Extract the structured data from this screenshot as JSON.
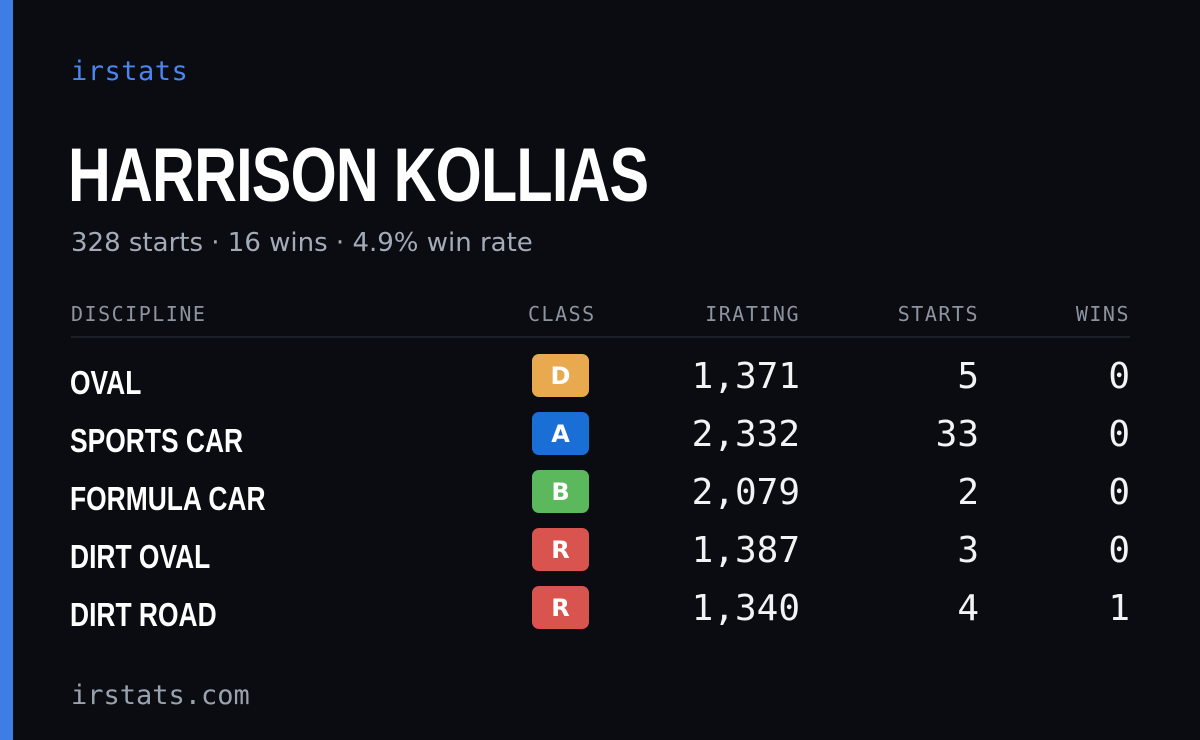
{
  "brand": "irstats",
  "driver": {
    "name": "HARRISON KOLLIAS",
    "summary": "328 starts · 16 wins · 4.9% win rate"
  },
  "columns": {
    "discipline": "DISCIPLINE",
    "class": "CLASS",
    "irating": "IRATING",
    "starts": "STARTS",
    "wins": "WINS"
  },
  "rows": [
    {
      "discipline": "OVAL",
      "class": "D",
      "class_color": "#e8a94f",
      "irating": "1,371",
      "starts": "5",
      "wins": "0"
    },
    {
      "discipline": "SPORTS CAR",
      "class": "A",
      "class_color": "#1a6fd6",
      "irating": "2,332",
      "starts": "33",
      "wins": "0"
    },
    {
      "discipline": "FORMULA CAR",
      "class": "B",
      "class_color": "#5cb85c",
      "irating": "2,079",
      "starts": "2",
      "wins": "0"
    },
    {
      "discipline": "DIRT OVAL",
      "class": "R",
      "class_color": "#d9534f",
      "irating": "1,387",
      "starts": "3",
      "wins": "0"
    },
    {
      "discipline": "DIRT ROAD",
      "class": "R",
      "class_color": "#d9534f",
      "irating": "1,340",
      "starts": "4",
      "wins": "1"
    }
  ],
  "footer": "irstats.com",
  "colors": {
    "accent": "#3f7de4",
    "background": "#0a0c12"
  }
}
